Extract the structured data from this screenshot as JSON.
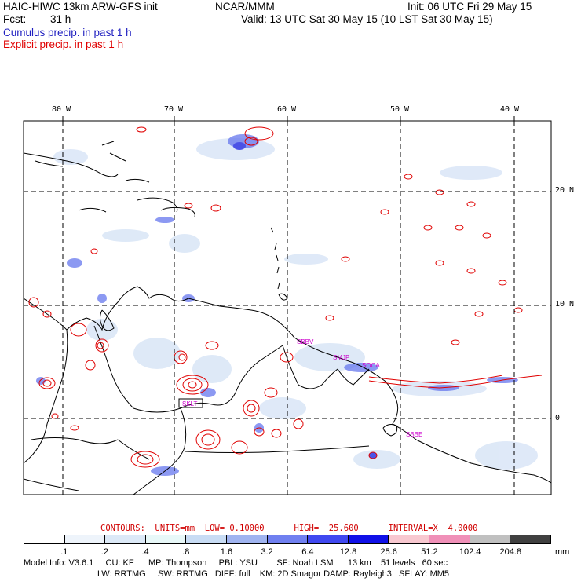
{
  "header": {
    "model_title": "HAIC-HIWC 13km ARW-GFS init",
    "org": "NCAR/MMM",
    "init": "Init: 06 UTC Fri 29 May 15",
    "fcst_label": "Fcst:",
    "fcst_value": "31 h",
    "valid": "Valid: 13 UTC Sat 30 May 15 (10 LST Sat 30 May 15)",
    "field1": "Cumulus precip. in past 1 h",
    "field2": "Explicit precip. in past 1 h",
    "field1_color": "#1f1fc0",
    "field2_color": "#e00000"
  },
  "map": {
    "lon_labels": [
      "80 W",
      "70 W",
      "60 W",
      "50 W",
      "40 W"
    ],
    "lat_labels": [
      "20 N",
      "10 N",
      "0"
    ],
    "stations": [
      "SBBV",
      "SMJP",
      "SOCA",
      "SBBE",
      "SKLT"
    ]
  },
  "contours": {
    "text": "CONTOURS:  UNITS=mm  LOW= 0.10000      HIGH=  25.600      INTERVAL=X  4.0000"
  },
  "colorbar": {
    "labels": [
      ".1",
      ".2",
      ".4",
      ".8",
      "1.6",
      "3.2",
      "6.4",
      "12.8",
      "25.6",
      "51.2",
      "102.4",
      "204.8"
    ],
    "unit": "mm",
    "colors": [
      "#ffffff",
      "#eef4fb",
      "#dce9f7",
      "#e8f8f8",
      "#c8dcf4",
      "#a0b4f0",
      "#7080f0",
      "#4048f0",
      "#1010e8",
      "#f8c8d0",
      "#f090b8",
      "#c0c0c0",
      "#404040",
      "#d0a0f0"
    ]
  },
  "footer": {
    "line1": "Model Info: V3.6.1     CU: KF      MP: Thompson     PBL: YSU        SF: Noah LSM      13 km    51 levels   60 sec",
    "line2": "LW: RRTMG     SW: RRTMG   DIFF: full    KM: 2D Smagor DAMP: Rayleigh3   SFLAY: MM5"
  }
}
